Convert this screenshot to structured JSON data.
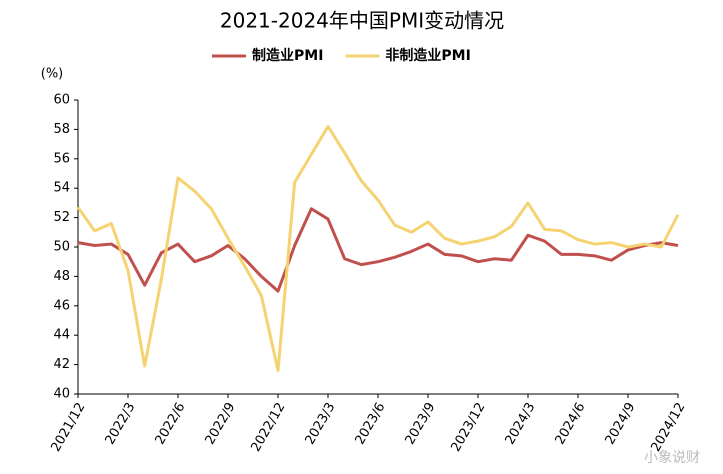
{
  "chart_data": {
    "type": "line",
    "title": "2021-2024年中国PMI变动情况",
    "y_unit": "(%)",
    "watermark": "小象说财",
    "categories": [
      "2021/12",
      null,
      null,
      "2022/3",
      null,
      null,
      "2022/6",
      null,
      null,
      "2022/9",
      null,
      null,
      "2022/12",
      null,
      null,
      "2023/3",
      null,
      null,
      "2023/6",
      null,
      null,
      "2023/9",
      null,
      null,
      "2023/12",
      null,
      null,
      "2024/3",
      null,
      null,
      "2024/6",
      null,
      null,
      "2024/9",
      null,
      null,
      "2024/12"
    ],
    "series": [
      {
        "name": "制造业PMI",
        "color": "#c0504d",
        "values": [
          50.3,
          50.1,
          50.2,
          49.5,
          47.4,
          49.6,
          50.2,
          49.0,
          49.4,
          50.1,
          49.2,
          48.0,
          47.0,
          50.1,
          52.6,
          51.9,
          49.2,
          48.8,
          49.0,
          49.3,
          49.7,
          50.2,
          49.5,
          49.4,
          49.0,
          49.2,
          49.1,
          50.8,
          50.4,
          49.5,
          49.5,
          49.4,
          49.1,
          49.8,
          50.1,
          50.3,
          50.1
        ]
      },
      {
        "name": "非制造业PMI",
        "color": "#f5d372",
        "values": [
          52.7,
          51.1,
          51.6,
          48.4,
          41.9,
          47.8,
          54.7,
          53.8,
          52.6,
          50.6,
          48.7,
          46.7,
          41.6,
          54.4,
          56.3,
          58.2,
          56.4,
          54.5,
          53.2,
          51.5,
          51.0,
          51.7,
          50.6,
          50.2,
          50.4,
          50.7,
          51.4,
          53.0,
          51.2,
          51.1,
          50.5,
          50.2,
          50.3,
          50.0,
          50.2,
          50.0,
          52.2
        ]
      }
    ],
    "ylim": [
      40,
      60
    ],
    "yticks": [
      40,
      42,
      44,
      46,
      48,
      50,
      52,
      54,
      56,
      58,
      60
    ],
    "legend": "top"
  }
}
